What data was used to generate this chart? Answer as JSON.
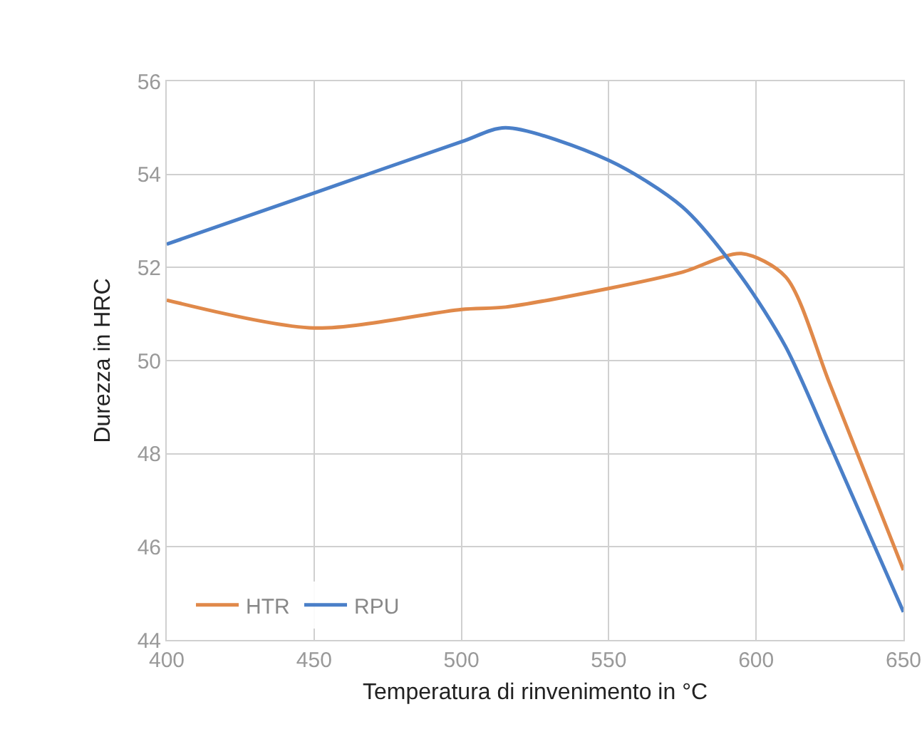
{
  "chart_data": {
    "type": "line",
    "xlabel": "Temperatura di rinvenimento in °C",
    "ylabel": "Durezza in HRC",
    "x": [
      400,
      450,
      500,
      515,
      550,
      575,
      595,
      610,
      625,
      650
    ],
    "series": [
      {
        "name": "HTR",
        "color": "#e0894a",
        "values": [
          51.3,
          50.7,
          51.1,
          51.15,
          51.55,
          51.9,
          52.3,
          51.8,
          49.5,
          45.5
        ]
      },
      {
        "name": "RPU",
        "color": "#4a7fc8",
        "values": [
          52.5,
          53.6,
          54.7,
          55.0,
          54.3,
          53.3,
          51.8,
          50.3,
          48.2,
          44.6
        ]
      }
    ],
    "xlim": [
      400,
      650
    ],
    "xticks": [
      400,
      450,
      500,
      550,
      600,
      650
    ],
    "ylim": [
      44,
      56
    ],
    "yticks": [
      44,
      46,
      48,
      50,
      52,
      54,
      56
    ],
    "grid": true,
    "legend": "bottom left",
    "marker": "none",
    "line_style": "solid"
  }
}
